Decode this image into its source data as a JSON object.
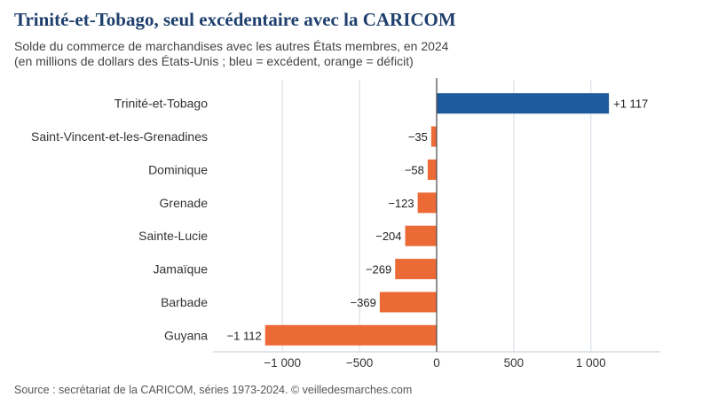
{
  "chart_data": {
    "type": "bar",
    "orientation": "horizontal",
    "title": "Trinité-et-Tobago, seul excédentaire avec la CARICOM",
    "subtitle_line1": "Solde du commerce de marchandises avec les autres États membres, en 2024",
    "subtitle_line2": "(en millions de dollars des États-Unis ; bleu = excédent, orange = déficit)",
    "categories": [
      "Trinité-et-Tobago",
      "Saint-Vincent-et-les-Grenadines",
      "Dominique",
      "Grenade",
      "Sainte-Lucie",
      "Jamaïque",
      "Barbade",
      "Guyana"
    ],
    "values": [
      1117,
      -35,
      -58,
      -123,
      -204,
      -269,
      -369,
      -1112
    ],
    "value_labels": [
      "+1 117",
      "−35",
      "−58",
      "−123",
      "−204",
      "−269",
      "−369",
      "−1 112"
    ],
    "xlim": [
      -1450,
      1450
    ],
    "x_ticks": [
      -1000,
      -500,
      0,
      500,
      1000
    ],
    "x_tick_labels": [
      "−1 000",
      "−500",
      "0",
      "500",
      "1 000"
    ],
    "colors": {
      "positive": "#1f5a9e",
      "negative": "#ec6a35",
      "grid": "#d6dbe6",
      "zero_line": "#555555"
    },
    "grid": true,
    "source": "Source : secrétariat de la CARICOM, séries 1973-2024. © veilledesmarches.com"
  }
}
